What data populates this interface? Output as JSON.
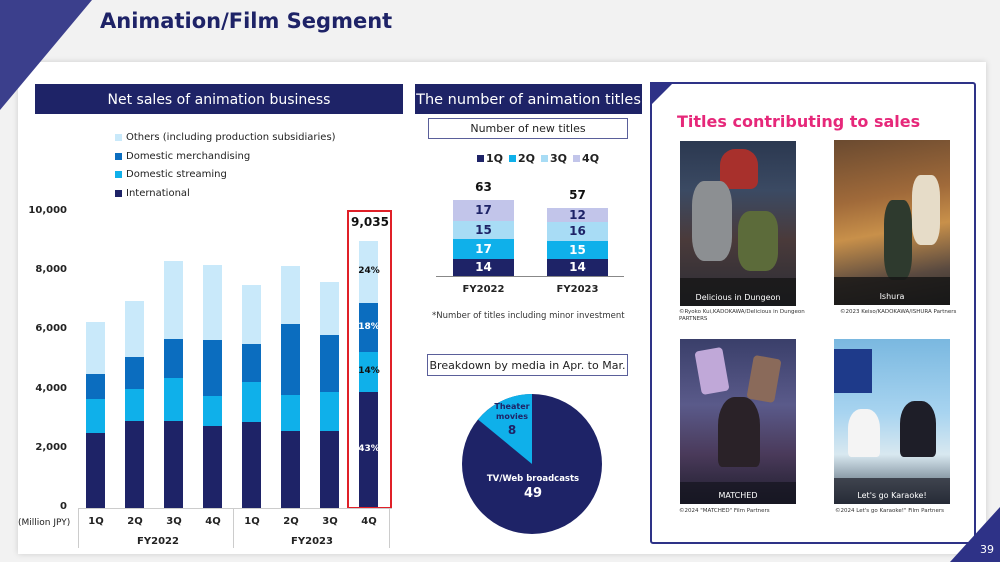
{
  "page": {
    "title": "Animation/Film Segment",
    "page_number": "39"
  },
  "left_panel": {
    "header": "Net sales of animation business",
    "legend": [
      {
        "label": "Others (including production subsidiaries)",
        "color": "#c9e9fa"
      },
      {
        "label": "Domestic merchandising",
        "color": "#0b6dbf"
      },
      {
        "label": "Domestic streaming",
        "color": "#0fb0ea"
      },
      {
        "label": "International",
        "color": "#1e2367"
      }
    ],
    "unit_label": "(Million JPY)",
    "highlight_total": "9,035",
    "highlight_pcts": [
      "24%",
      "18%",
      "14%",
      "43%"
    ],
    "year_groups": [
      "FY2022",
      "FY2023"
    ]
  },
  "middle_panel": {
    "header": "The number of animation titles",
    "subheader": "Number of new titles",
    "legend": [
      {
        "label": "1Q",
        "color": "#1e2367"
      },
      {
        "label": "2Q",
        "color": "#0fb0ea"
      },
      {
        "label": "3Q",
        "color": "#a8dcf5"
      },
      {
        "label": "4Q",
        "color": "#c2c5ea"
      }
    ],
    "footnote": "*Number of titles including minor investment",
    "pie_header": "Breakdown by media in Apr. to Mar.",
    "pie_labels": {
      "theater": "Theater movies",
      "theater_value": "8",
      "tv": "TV/Web broadcasts",
      "tv_value": "49"
    }
  },
  "right_panel": {
    "header": "Titles contributing to sales",
    "header_color": "#e6287a",
    "titles": [
      {
        "name": "Delicious in Dungeon",
        "credit": "©Ryoko Kui,KADOKAWA/Delicious in Dungeon PARTNERS"
      },
      {
        "name": "Ishura",
        "credit": "©2023 Keiso/KADOKAWA/ISHURA Partners"
      },
      {
        "name": "MATCHED",
        "credit": "©2024 \"MATCHED\" Film Partners"
      },
      {
        "name": "Let's go Karaoke!",
        "credit": "©2024 Let's go Karaoke!\" Film Partners"
      }
    ]
  },
  "chart_data": [
    {
      "type": "bar",
      "stacked": true,
      "title": "Net sales of animation business",
      "ylabel": "(Million JPY)",
      "ylim": [
        0,
        10000
      ],
      "yticks": [
        "0",
        "2,000",
        "4,000",
        "6,000",
        "8,000",
        "10,000"
      ],
      "categories": [
        "FY2022 1Q",
        "FY2022 2Q",
        "FY2022 3Q",
        "FY2022 4Q",
        "FY2023 1Q",
        "FY2023 2Q",
        "FY2023 3Q",
        "FY2023 4Q"
      ],
      "series": [
        {
          "name": "International",
          "values": [
            2550,
            2940,
            2940,
            2760,
            2920,
            2590,
            2610,
            3930
          ]
        },
        {
          "name": "Domestic streaming",
          "values": [
            1130,
            1090,
            1440,
            1040,
            1330,
            1230,
            1300,
            1330
          ]
        },
        {
          "name": "Domestic merchandising",
          "values": [
            860,
            1060,
            1340,
            1890,
            1300,
            2380,
            1950,
            1650
          ]
        },
        {
          "name": "Others (including production subsidiaries)",
          "values": [
            1730,
            1900,
            2640,
            2510,
            1970,
            1990,
            1790,
            2125
          ]
        }
      ],
      "totals": [
        6270,
        6990,
        8360,
        8200,
        7520,
        8190,
        7650,
        9035
      ],
      "annotations": {
        "FY2023 4Q": {
          "total": "9,035",
          "shares": {
            "Others": "24%",
            "Domestic merchandising": "18%",
            "Domestic streaming": "14%",
            "International": "43%"
          }
        }
      },
      "legend_position": "top-left",
      "grid": false
    },
    {
      "type": "bar",
      "stacked": true,
      "title": "Number of new titles",
      "categories": [
        "FY2022",
        "FY2023"
      ],
      "series": [
        {
          "name": "1Q",
          "values": [
            14,
            14
          ]
        },
        {
          "name": "2Q",
          "values": [
            17,
            15
          ]
        },
        {
          "name": "3Q",
          "values": [
            15,
            16
          ]
        },
        {
          "name": "4Q",
          "values": [
            17,
            12
          ]
        }
      ],
      "totals": [
        63,
        57
      ],
      "legend_position": "top"
    },
    {
      "type": "pie",
      "title": "Breakdown by media in Apr. to Mar.",
      "categories": [
        "TV/Web broadcasts",
        "Theater movies"
      ],
      "values": [
        49,
        8
      ]
    }
  ]
}
